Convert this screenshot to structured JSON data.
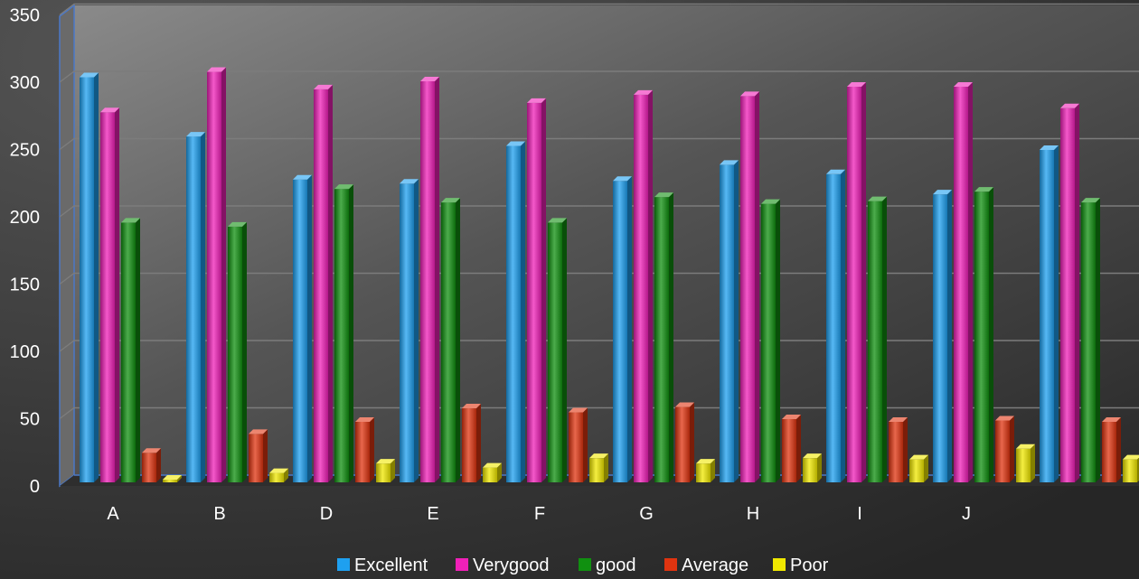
{
  "chart_data": {
    "type": "bar",
    "title": "",
    "xlabel": "",
    "ylabel": "",
    "ylim": [
      0,
      350
    ],
    "yticks": [
      0,
      50,
      100,
      150,
      200,
      250,
      300,
      350
    ],
    "grid": true,
    "legend": "bottom",
    "categories": [
      "A",
      "B",
      "D",
      "E",
      "F",
      "G",
      "H",
      "I",
      "J",
      ""
    ],
    "series": [
      {
        "name": "Excellent",
        "color": "#1ea0f0",
        "values": [
          301,
          257,
          225,
          222,
          250,
          224,
          236,
          229,
          214,
          247
        ]
      },
      {
        "name": "Verygood",
        "color": "#f020b8",
        "values": [
          275,
          305,
          292,
          298,
          282,
          288,
          287,
          294,
          294,
          278
        ]
      },
      {
        "name": "good",
        "color": "#109010",
        "values": [
          193,
          190,
          218,
          208,
          193,
          212,
          207,
          209,
          216,
          208
        ]
      },
      {
        "name": "Average",
        "color": "#e03410",
        "values": [
          22,
          36,
          45,
          55,
          52,
          56,
          47,
          45,
          46,
          45
        ]
      },
      {
        "name": "Poor",
        "color": "#f0e800",
        "values": [
          2,
          7,
          14,
          11,
          18,
          14,
          18,
          17,
          25,
          17
        ]
      }
    ]
  }
}
